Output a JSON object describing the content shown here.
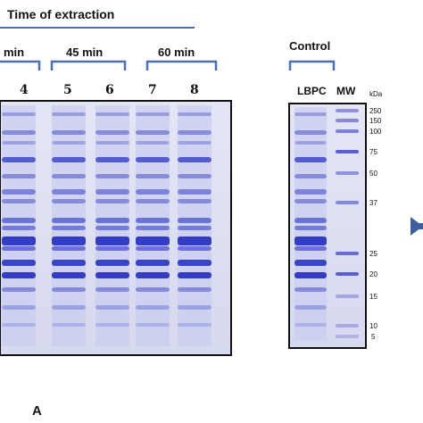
{
  "figure": {
    "title": "Time of extraction",
    "groups": [
      {
        "label": "min"
      },
      {
        "label": "45 min"
      },
      {
        "label": "60 min"
      }
    ],
    "lanes": [
      "4",
      "5",
      "6",
      "7",
      "8"
    ],
    "control": {
      "title": "Control",
      "lane_labels": [
        "LBPC",
        "MW"
      ],
      "unit": "kDa",
      "markers": [
        "250",
        "150",
        "100",
        "75",
        "50",
        "37",
        "25",
        "20",
        "15",
        "10",
        "5"
      ]
    },
    "panel_letter": "A"
  },
  "colors": {
    "accent_line": "#4a6fb5",
    "gel_background": "#d9dcf2",
    "band_dark": "#2a35c0",
    "arrow": "#3e5f9a"
  }
}
